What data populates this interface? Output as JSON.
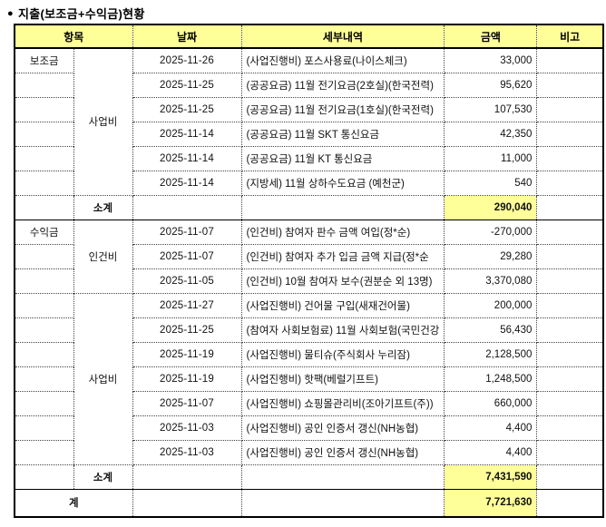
{
  "title": {
    "bullet": "●",
    "text": "지출(보조금+수익금)현황"
  },
  "colors": {
    "header_bg": "#FFFF99",
    "highlight_bg": "#FFFF99",
    "accent_blue": "#3366CC",
    "border": "#000000"
  },
  "table": {
    "headers": [
      "항목",
      "날짜",
      "세부내역",
      "금액",
      "비고"
    ],
    "s0": {
      "category": "보조금",
      "group": "사업비",
      "rows": [
        {
          "date": "2025-11-26",
          "detail": "(사업진행비) 포스사용료(나이스체크)",
          "amount": "33,000",
          "note": ""
        },
        {
          "date": "2025-11-25",
          "detail": "(공공요금) 11월 전기요금(2호실)(한국전력)",
          "amount": "95,620",
          "note": ""
        },
        {
          "date": "2025-11-25",
          "detail": "(공공요금) 11월 전기요금(1호실)(한국전력)",
          "amount": "107,530",
          "note": ""
        },
        {
          "date": "2025-11-14",
          "detail": "(공공요금) 11월 SKT 통신요금",
          "amount": "42,350",
          "note": ""
        },
        {
          "date": "2025-11-14",
          "detail": "(공공요금) 11월 KT 통신요금",
          "amount": "11,000",
          "note": ""
        },
        {
          "date": "2025-11-14",
          "detail": "(지방세) 11월 상하수도요금 (예천군)",
          "amount": "540",
          "note": ""
        }
      ],
      "subtotal_label": "소계",
      "subtotal": "290,040"
    },
    "s1": {
      "category": "수익금",
      "group1": "인건비",
      "rows1": [
        {
          "date": "2025-11-07",
          "detail": "(인건비) 참여자 판수 금액 여입(정*순)",
          "amount": "-270,000",
          "note": ""
        },
        {
          "date": "2025-11-07",
          "detail": "(인건비) 참여자 추가 입금 금액 지급(정*순",
          "amount": "29,280",
          "note": ""
        },
        {
          "date": "2025-11-05",
          "detail": "(인건비) 10월 참여자 보수(권분순 외 13명)",
          "amount": "3,370,080",
          "note": ""
        }
      ],
      "group2": "사업비",
      "rows2": [
        {
          "date": "2025-11-27",
          "detail": "(사업진행비) 건어물 구입(새재건어물)",
          "amount": "200,000",
          "note": ""
        },
        {
          "date": "2025-11-25",
          "detail": "(참여자 사회보험료) 11월 사회보험(국민건강",
          "amount": "56,430",
          "note": ""
        },
        {
          "date": "2025-11-19",
          "detail": "(사업진행비) 물티슈(주식회사 누리잠)",
          "amount": "2,128,500",
          "note": ""
        },
        {
          "date": "2025-11-19",
          "detail": "(사업진행비) 핫팩(베럴기프트)",
          "amount": "1,248,500",
          "note": ""
        },
        {
          "date": "2025-11-07",
          "detail": "(사업진행비) 쇼핑몰관리비(조아기프트(주))",
          "amount": "660,000",
          "note": ""
        },
        {
          "date": "2025-11-03",
          "detail": "(사업진행비) 공인 인증서 갱신(NH농협)",
          "amount": "4,400",
          "note": ""
        },
        {
          "date": "2025-11-03",
          "detail": "(사업진행비) 공인 인증서 갱신(NH농협)",
          "amount": "4,400",
          "note": ""
        }
      ],
      "subtotal_label": "소계",
      "subtotal": "7,431,590"
    },
    "total_label": "계",
    "total": "7,721,630"
  }
}
